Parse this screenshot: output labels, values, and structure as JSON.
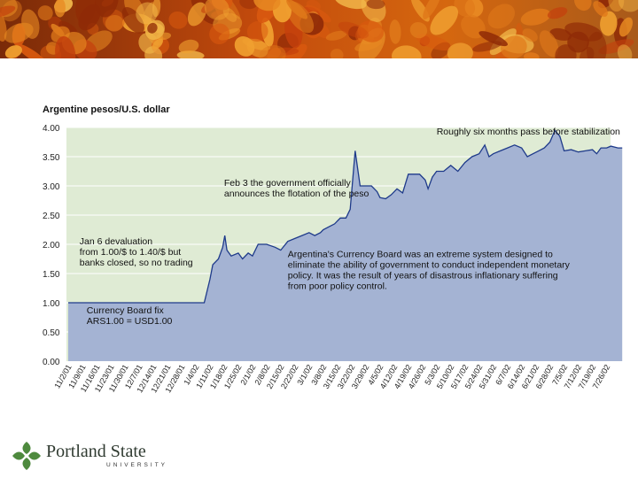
{
  "chart_data": {
    "type": "area",
    "title": "Argentine pesos/U.S. dollar",
    "ylim": [
      0,
      4.0
    ],
    "yticks": [
      "0.00",
      "0.50",
      "1.00",
      "1.50",
      "2.00",
      "2.50",
      "3.00",
      "3.50",
      "4.00"
    ],
    "grid": "horizontal",
    "xtick_labels": [
      "11/2/01",
      "11/9/01",
      "11/16/01",
      "11/23/01",
      "11/30/01",
      "12/7/01",
      "12/14/01",
      "12/21/01",
      "12/28/01",
      "1/4/02",
      "1/11/02",
      "1/18/02",
      "1/25/02",
      "2/1/02",
      "2/8/02",
      "2/15/02",
      "2/22/02",
      "3/1/02",
      "3/8/02",
      "3/15/02",
      "3/22/02",
      "3/29/02",
      "4/5/02",
      "4/12/02",
      "4/19/02",
      "4/26/02",
      "5/3/02",
      "5/10/02",
      "5/17/02",
      "5/24/02",
      "5/31/02",
      "6/7/02",
      "6/14/02",
      "6/21/02",
      "6/28/02",
      "7/5/02",
      "7/12/02",
      "7/19/02",
      "7/26/02"
    ],
    "series": [
      {
        "points": [
          [
            0,
            1.0
          ],
          [
            9.6,
            1.0
          ],
          [
            10.0,
            1.4
          ],
          [
            10.2,
            1.65
          ],
          [
            10.6,
            1.75
          ],
          [
            10.9,
            1.95
          ],
          [
            11.05,
            2.15
          ],
          [
            11.2,
            1.9
          ],
          [
            11.5,
            1.8
          ],
          [
            12.0,
            1.85
          ],
          [
            12.3,
            1.75
          ],
          [
            12.7,
            1.85
          ],
          [
            13.0,
            1.8
          ],
          [
            13.4,
            2.0
          ],
          [
            14.0,
            2.0
          ],
          [
            14.6,
            1.95
          ],
          [
            15.0,
            1.9
          ],
          [
            15.5,
            2.05
          ],
          [
            16.0,
            2.1
          ],
          [
            16.5,
            2.15
          ],
          [
            17.0,
            2.2
          ],
          [
            17.4,
            2.15
          ],
          [
            17.8,
            2.2
          ],
          [
            18.0,
            2.25
          ],
          [
            18.4,
            2.3
          ],
          [
            18.8,
            2.35
          ],
          [
            19.2,
            2.45
          ],
          [
            19.6,
            2.45
          ],
          [
            19.9,
            2.6
          ],
          [
            20.25,
            3.6
          ],
          [
            20.6,
            3.0
          ],
          [
            21.0,
            3.0
          ],
          [
            21.4,
            3.0
          ],
          [
            21.8,
            2.9
          ],
          [
            22.0,
            2.8
          ],
          [
            22.4,
            2.78
          ],
          [
            22.8,
            2.85
          ],
          [
            23.2,
            2.95
          ],
          [
            23.6,
            2.88
          ],
          [
            24.0,
            3.2
          ],
          [
            24.4,
            3.2
          ],
          [
            24.8,
            3.2
          ],
          [
            25.2,
            3.1
          ],
          [
            25.4,
            2.95
          ],
          [
            25.7,
            3.15
          ],
          [
            26.0,
            3.25
          ],
          [
            26.5,
            3.25
          ],
          [
            27.0,
            3.35
          ],
          [
            27.5,
            3.25
          ],
          [
            28.0,
            3.4
          ],
          [
            28.5,
            3.5
          ],
          [
            29.0,
            3.55
          ],
          [
            29.4,
            3.7
          ],
          [
            29.7,
            3.5
          ],
          [
            30.0,
            3.55
          ],
          [
            30.5,
            3.6
          ],
          [
            31.0,
            3.65
          ],
          [
            31.5,
            3.7
          ],
          [
            32.0,
            3.65
          ],
          [
            32.4,
            3.5
          ],
          [
            32.8,
            3.55
          ],
          [
            33.2,
            3.6
          ],
          [
            33.6,
            3.65
          ],
          [
            34.0,
            3.75
          ],
          [
            34.35,
            3.95
          ],
          [
            34.7,
            3.85
          ],
          [
            35.0,
            3.6
          ],
          [
            35.5,
            3.62
          ],
          [
            36.0,
            3.58
          ],
          [
            36.5,
            3.6
          ],
          [
            37.0,
            3.62
          ],
          [
            37.3,
            3.55
          ],
          [
            37.6,
            3.65
          ],
          [
            38.0,
            3.65
          ],
          [
            38.3,
            3.68
          ],
          [
            38.8,
            3.65
          ],
          [
            39.1,
            3.65
          ]
        ]
      }
    ],
    "annotations": [
      {
        "lines": [
          "Roughly six months pass before stabilization"
        ],
        "x": 26.0,
        "y": 3.88
      },
      {
        "lines": [
          "Feb 3 the government officially",
          "announces the flotation of the peso"
        ],
        "x": 11.0,
        "y": 3.0
      },
      {
        "lines": [
          "Jan 6 devaluation",
          "from 1.00/$ to 1.40/$ but",
          "banks closed, so no trading"
        ],
        "x": 0.8,
        "y": 2.0
      },
      {
        "lines": [
          "Argentina's Currency Board was an extreme system designed to",
          "eliminate the ability of government to conduct independent monetary",
          "policy. It was the result of years of disastrous inflationary suffering",
          "from poor policy control."
        ],
        "x": 15.5,
        "y": 1.78
      },
      {
        "lines": [
          "Currency Board fix",
          "ARS1.00 = USD1.00"
        ],
        "x": 1.3,
        "y": 0.82
      }
    ],
    "colors": {
      "fill": "#a4b3d3",
      "line": "#1e3a8a",
      "background": "#dfebd4",
      "grid": "#ffffff"
    }
  },
  "logo": {
    "name": "Portland State",
    "sub": "UNIVERSITY"
  }
}
